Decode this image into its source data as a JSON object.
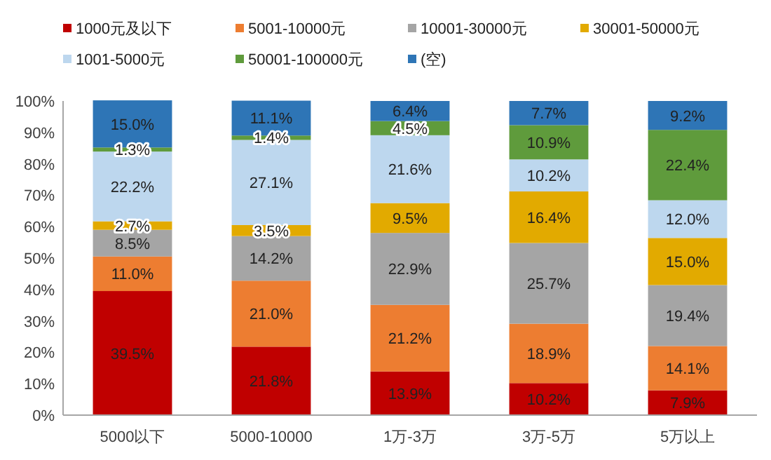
{
  "chart_data": {
    "type": "bar",
    "stacked": true,
    "legend": "top",
    "categories": [
      "5000以下",
      "5000-10000",
      "1万-3万",
      "3万-5万",
      "5万以上"
    ],
    "ylim": [
      0,
      100
    ],
    "yticks": [
      {
        "value": 0,
        "label": "0%"
      },
      {
        "value": 10,
        "label": "10%"
      },
      {
        "value": 20,
        "label": "20%"
      },
      {
        "value": 30,
        "label": "30%"
      },
      {
        "value": 40,
        "label": "40%"
      },
      {
        "value": 50,
        "label": "50%"
      },
      {
        "value": 60,
        "label": "60%"
      },
      {
        "value": 70,
        "label": "70%"
      },
      {
        "value": 80,
        "label": "80%"
      },
      {
        "value": 90,
        "label": "90%"
      },
      {
        "value": 100,
        "label": "100%"
      }
    ],
    "series": [
      {
        "name": "1000元及以下",
        "color": "#c00000",
        "values": [
          39.5,
          21.8,
          13.9,
          10.2,
          7.9
        ],
        "value_labels": [
          "39.5%",
          "21.8%",
          "13.9%",
          "10.2%",
          "7.9%"
        ]
      },
      {
        "name": "5001-10000元",
        "color": "#ed7d31",
        "values": [
          11.0,
          21.0,
          21.2,
          18.9,
          14.1
        ],
        "value_labels": [
          "11.0%",
          "21.0%",
          "21.2%",
          "18.9%",
          "14.1%"
        ]
      },
      {
        "name": "10001-30000元",
        "color": "#a5a5a5",
        "values": [
          8.5,
          14.2,
          22.9,
          25.7,
          19.4
        ],
        "value_labels": [
          "8.5%",
          "14.2%",
          "22.9%",
          "25.7%",
          "19.4%"
        ]
      },
      {
        "name": "30001-50000元",
        "color": "#e2aa00",
        "values": [
          2.7,
          3.5,
          9.5,
          16.4,
          15.0
        ],
        "value_labels": [
          "2.7%",
          "3.5%",
          "9.5%",
          "16.4%",
          "15.0%"
        ]
      },
      {
        "name": "1001-5000元",
        "color": "#bdd7ee",
        "values": [
          22.2,
          27.1,
          21.6,
          10.2,
          12.0
        ],
        "value_labels": [
          "22.2%",
          "27.1%",
          "21.6%",
          "10.2%",
          "12.0%"
        ]
      },
      {
        "name": "50001-100000元",
        "color": "#5f9b3c",
        "values": [
          1.3,
          1.4,
          4.5,
          10.9,
          22.4
        ],
        "value_labels": [
          "1.3%",
          "1.4%",
          "4.5%",
          "10.9%",
          "22.4%"
        ]
      },
      {
        "name": "(空)",
        "color": "#2e75b6",
        "values": [
          15.0,
          11.1,
          6.4,
          7.7,
          9.2
        ],
        "value_labels": [
          "15.0%",
          "11.1%",
          "6.4%",
          "7.7%",
          "9.2%"
        ]
      }
    ]
  }
}
